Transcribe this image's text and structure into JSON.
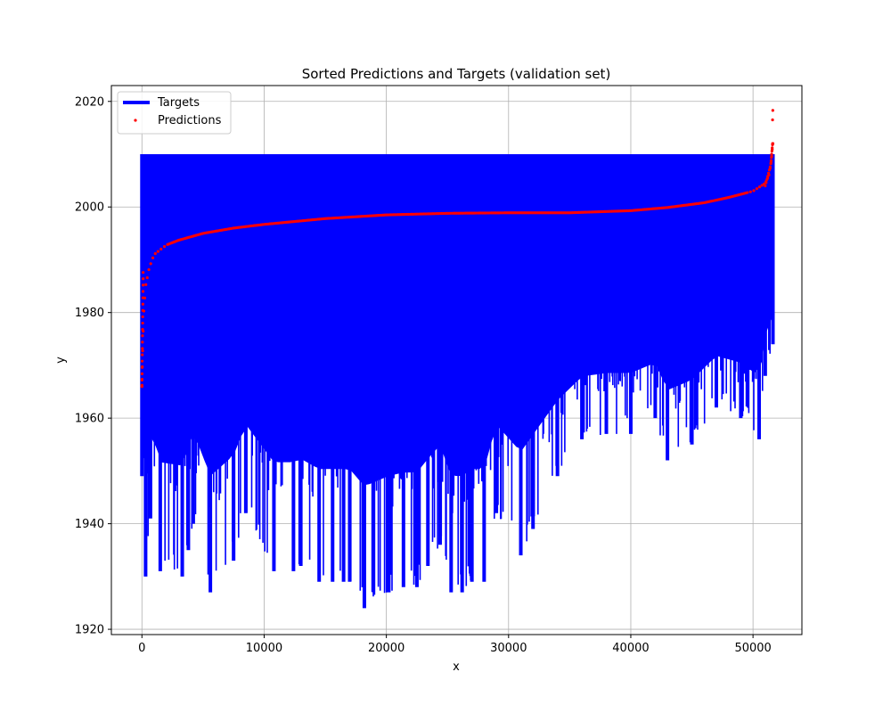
{
  "chart_data": {
    "type": "line",
    "title": "Sorted Predictions and Targets (validation set)",
    "xlabel": "x",
    "ylabel": "y",
    "xlim": [
      -2500,
      54000
    ],
    "ylim": [
      1919,
      2023
    ],
    "x_ticks": [
      0,
      10000,
      20000,
      30000,
      40000,
      50000
    ],
    "y_ticks": [
      1920,
      1940,
      1960,
      1980,
      2000,
      2020
    ],
    "grid": true,
    "legend_position": "top-left",
    "n_points": 51630,
    "series": [
      {
        "name": "Targets",
        "kind": "line",
        "color": "#0000ff",
        "range_max": 2010,
        "envelope_min": [
          [
            0,
            1949
          ],
          [
            300,
            1930
          ],
          [
            700,
            1941
          ],
          [
            1500,
            1931
          ],
          [
            3300,
            1930
          ],
          [
            3800,
            1935
          ],
          [
            4200,
            1940
          ],
          [
            5600,
            1927
          ],
          [
            7500,
            1933
          ],
          [
            8500,
            1942
          ],
          [
            10800,
            1931
          ],
          [
            12400,
            1931
          ],
          [
            13000,
            1932
          ],
          [
            14500,
            1929
          ],
          [
            15600,
            1929
          ],
          [
            16500,
            1929
          ],
          [
            17000,
            1929
          ],
          [
            18200,
            1924
          ],
          [
            20200,
            1927
          ],
          [
            21400,
            1928
          ],
          [
            22500,
            1928
          ],
          [
            23400,
            1932
          ],
          [
            24400,
            1936
          ],
          [
            25300,
            1927
          ],
          [
            26200,
            1927
          ],
          [
            27000,
            1929
          ],
          [
            28000,
            1929
          ],
          [
            29000,
            1942
          ],
          [
            31000,
            1934
          ],
          [
            32000,
            1939
          ],
          [
            34000,
            1949
          ],
          [
            36000,
            1956
          ],
          [
            38000,
            1957
          ],
          [
            40000,
            1957
          ],
          [
            42000,
            1960
          ],
          [
            43000,
            1952
          ],
          [
            45000,
            1955
          ],
          [
            47000,
            1962
          ],
          [
            49000,
            1960
          ],
          [
            50500,
            1956
          ],
          [
            51000,
            1968
          ],
          [
            51630,
            1974
          ]
        ]
      },
      {
        "name": "Predictions",
        "kind": "scatter",
        "color": "#ff0000",
        "values": [
          [
            0,
            1966
          ],
          [
            30,
            1970
          ],
          [
            80,
            1975
          ],
          [
            150,
            1980
          ],
          [
            300,
            1985
          ],
          [
            600,
            1988.5
          ],
          [
            1000,
            1991
          ],
          [
            2000,
            1992.8
          ],
          [
            3000,
            1993.7
          ],
          [
            5000,
            1995
          ],
          [
            7500,
            1996
          ],
          [
            10000,
            1996.7
          ],
          [
            15000,
            1997.8
          ],
          [
            20000,
            1998.5
          ],
          [
            25000,
            1998.8
          ],
          [
            30000,
            1998.9
          ],
          [
            35000,
            1998.9
          ],
          [
            40000,
            1999.3
          ],
          [
            43000,
            1999.9
          ],
          [
            46000,
            2000.8
          ],
          [
            48000,
            2001.8
          ],
          [
            50000,
            2003
          ],
          [
            51000,
            2004.5
          ],
          [
            51300,
            2006
          ],
          [
            51450,
            2008
          ],
          [
            51550,
            2010
          ],
          [
            51600,
            2012
          ]
        ],
        "outliers": [
          [
            51600,
            2016.5
          ],
          [
            51620,
            2018.3
          ]
        ]
      }
    ]
  }
}
